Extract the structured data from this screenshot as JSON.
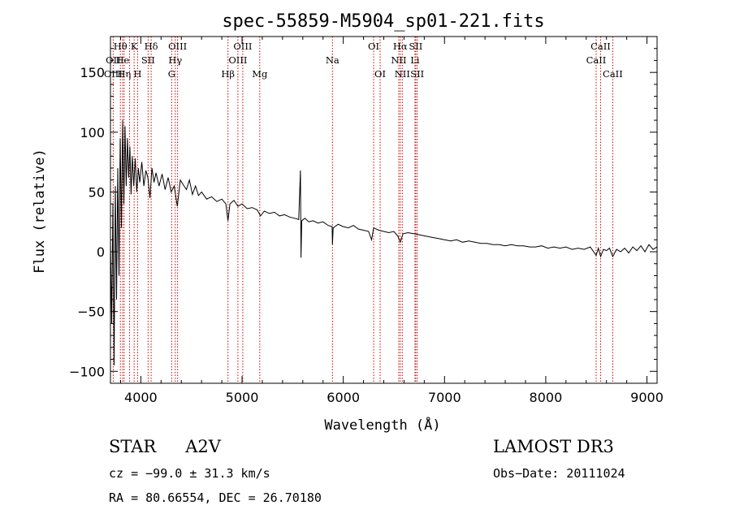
{
  "chart_data": {
    "type": "line",
    "title": "spec-55859-M5904_sp01-221.fits",
    "xlabel": "Wavelength (Å)",
    "ylabel": "Flux (relative)",
    "xlim": [
      3700,
      9100
    ],
    "ylim": [
      -110,
      180
    ],
    "x_ticks": [
      {
        "value": 4000,
        "label": "4000"
      },
      {
        "value": 5000,
        "label": "5000"
      },
      {
        "value": 6000,
        "label": "6000"
      },
      {
        "value": 7000,
        "label": "7000"
      },
      {
        "value": 8000,
        "label": "8000"
      },
      {
        "value": 9000,
        "label": "9000"
      }
    ],
    "y_ticks": [
      {
        "value": -100,
        "label": "−100"
      },
      {
        "value": -50,
        "label": "−50"
      },
      {
        "value": 0,
        "label": "0"
      },
      {
        "value": 50,
        "label": "50"
      },
      {
        "value": 100,
        "label": "100"
      },
      {
        "value": 150,
        "label": "150"
      }
    ],
    "series": [
      {
        "name": "flux",
        "points": [
          [
            3700,
            10
          ],
          [
            3712,
            -60
          ],
          [
            3724,
            40
          ],
          [
            3736,
            -95
          ],
          [
            3748,
            55
          ],
          [
            3760,
            -40
          ],
          [
            3772,
            70
          ],
          [
            3784,
            -20
          ],
          [
            3796,
            95
          ],
          [
            3808,
            20
          ],
          [
            3820,
            110
          ],
          [
            3832,
            40
          ],
          [
            3844,
            105
          ],
          [
            3856,
            55
          ],
          [
            3868,
            95
          ],
          [
            3880,
            62
          ],
          [
            3892,
            88
          ],
          [
            3904,
            48
          ],
          [
            3916,
            80
          ],
          [
            3930,
            55
          ],
          [
            3945,
            78
          ],
          [
            3960,
            50
          ],
          [
            3975,
            70
          ],
          [
            3990,
            58
          ],
          [
            4010,
            75
          ],
          [
            4030,
            55
          ],
          [
            4050,
            68
          ],
          [
            4070,
            62
          ],
          [
            4090,
            45
          ],
          [
            4110,
            70
          ],
          [
            4130,
            58
          ],
          [
            4150,
            66
          ],
          [
            4180,
            55
          ],
          [
            4210,
            65
          ],
          [
            4240,
            52
          ],
          [
            4270,
            62
          ],
          [
            4300,
            50
          ],
          [
            4330,
            55
          ],
          [
            4360,
            38
          ],
          [
            4390,
            60
          ],
          [
            4420,
            56
          ],
          [
            4450,
            52
          ],
          [
            4480,
            60
          ],
          [
            4510,
            48
          ],
          [
            4540,
            55
          ],
          [
            4570,
            47
          ],
          [
            4600,
            50
          ],
          [
            4650,
            44
          ],
          [
            4700,
            46
          ],
          [
            4750,
            42
          ],
          [
            4800,
            44
          ],
          [
            4840,
            40
          ],
          [
            4861,
            26
          ],
          [
            4880,
            40
          ],
          [
            4920,
            43
          ],
          [
            4960,
            38
          ],
          [
            5000,
            40
          ],
          [
            5050,
            36
          ],
          [
            5100,
            37
          ],
          [
            5150,
            35
          ],
          [
            5183,
            30
          ],
          [
            5220,
            34
          ],
          [
            5270,
            32
          ],
          [
            5320,
            33
          ],
          [
            5370,
            30
          ],
          [
            5420,
            31
          ],
          [
            5470,
            29
          ],
          [
            5520,
            28
          ],
          [
            5560,
            27
          ],
          [
            5577,
            68
          ],
          [
            5582,
            -5
          ],
          [
            5590,
            26
          ],
          [
            5620,
            28
          ],
          [
            5660,
            25
          ],
          [
            5700,
            26
          ],
          [
            5750,
            24
          ],
          [
            5800,
            25
          ],
          [
            5850,
            22
          ],
          [
            5890,
            21
          ],
          [
            5893,
            6
          ],
          [
            5900,
            20
          ],
          [
            5950,
            23
          ],
          [
            6000,
            21
          ],
          [
            6050,
            20
          ],
          [
            6100,
            22
          ],
          [
            6150,
            19
          ],
          [
            6200,
            18
          ],
          [
            6250,
            17
          ],
          [
            6280,
            10
          ],
          [
            6300,
            20
          ],
          [
            6350,
            18
          ],
          [
            6400,
            17
          ],
          [
            6450,
            16
          ],
          [
            6500,
            17
          ],
          [
            6540,
            13
          ],
          [
            6563,
            8
          ],
          [
            6590,
            15
          ],
          [
            6640,
            16
          ],
          [
            6700,
            15
          ],
          [
            6760,
            14
          ],
          [
            6820,
            13
          ],
          [
            6880,
            12
          ],
          [
            6940,
            11
          ],
          [
            7000,
            10
          ],
          [
            7060,
            9
          ],
          [
            7120,
            10
          ],
          [
            7180,
            8
          ],
          [
            7240,
            9
          ],
          [
            7300,
            8
          ],
          [
            7360,
            7
          ],
          [
            7420,
            7
          ],
          [
            7480,
            6
          ],
          [
            7540,
            6
          ],
          [
            7600,
            5
          ],
          [
            7660,
            6
          ],
          [
            7720,
            5
          ],
          [
            7780,
            5
          ],
          [
            7840,
            4
          ],
          [
            7900,
            4
          ],
          [
            7960,
            5
          ],
          [
            8020,
            3
          ],
          [
            8080,
            4
          ],
          [
            8140,
            3
          ],
          [
            8200,
            4
          ],
          [
            8260,
            2
          ],
          [
            8320,
            3
          ],
          [
            8380,
            2
          ],
          [
            8440,
            4
          ],
          [
            8498,
            -3
          ],
          [
            8520,
            3
          ],
          [
            8542,
            -4
          ],
          [
            8570,
            2
          ],
          [
            8600,
            1
          ],
          [
            8630,
            3
          ],
          [
            8662,
            -4
          ],
          [
            8700,
            2
          ],
          [
            8740,
            0
          ],
          [
            8780,
            3
          ],
          [
            8820,
            -1
          ],
          [
            8860,
            4
          ],
          [
            8900,
            1
          ],
          [
            8940,
            5
          ],
          [
            8980,
            0
          ],
          [
            9020,
            6
          ],
          [
            9060,
            2
          ],
          [
            9100,
            4
          ]
        ]
      }
    ],
    "annotations": [
      {
        "label": "Hθ",
        "wavelength": 3798,
        "row": 1
      },
      {
        "label": "K",
        "wavelength": 3934,
        "row": 1
      },
      {
        "label": "Hδ",
        "wavelength": 4102,
        "row": 1
      },
      {
        "label": "OIII",
        "wavelength": 4363,
        "row": 1
      },
      {
        "label": "OIII",
        "wavelength": 5007,
        "row": 1
      },
      {
        "label": "OI",
        "wavelength": 6300,
        "row": 1
      },
      {
        "label": "Hα",
        "wavelength": 6563,
        "row": 1
      },
      {
        "label": "SII",
        "wavelength": 6716,
        "row": 1
      },
      {
        "label": "CaII",
        "wavelength": 8542,
        "row": 1
      },
      {
        "label": "OII",
        "wavelength": 3727,
        "row": 2
      },
      {
        "label": "He",
        "wavelength": 3820,
        "row": 2
      },
      {
        "label": "SII",
        "wavelength": 4072,
        "row": 2
      },
      {
        "label": "Hγ",
        "wavelength": 4340,
        "row": 2
      },
      {
        "label": "OIII",
        "wavelength": 4959,
        "row": 2
      },
      {
        "label": "Na",
        "wavelength": 5893,
        "row": 2
      },
      {
        "label": "NII",
        "wavelength": 6548,
        "row": 2
      },
      {
        "label": "Li",
        "wavelength": 6708,
        "row": 2
      },
      {
        "label": "CaII",
        "wavelength": 8498,
        "row": 2
      },
      {
        "label": "OIII",
        "wavelength": 3727,
        "row": 3
      },
      {
        "label": "Hη",
        "wavelength": 3835,
        "row": 3
      },
      {
        "label": "H",
        "wavelength": 3968,
        "row": 3
      },
      {
        "label": "G",
        "wavelength": 4305,
        "row": 3
      },
      {
        "label": "Hβ",
        "wavelength": 4861,
        "row": 3
      },
      {
        "label": "Mg",
        "wavelength": 5175,
        "row": 3
      },
      {
        "label": "OI",
        "wavelength": 6364,
        "row": 3
      },
      {
        "label": "NII",
        "wavelength": 6583,
        "row": 3
      },
      {
        "label": "SII",
        "wavelength": 6731,
        "row": 3
      },
      {
        "label": "CaII",
        "wavelength": 8662,
        "row": 3
      }
    ],
    "line_markers": [
      3727,
      3798,
      3820,
      3835,
      3889,
      3934,
      3968,
      4072,
      4102,
      4305,
      4340,
      4363,
      4861,
      4959,
      5007,
      5175,
      5893,
      6300,
      6364,
      6548,
      6563,
      6583,
      6708,
      6716,
      6731,
      8498,
      8542,
      8662
    ],
    "colors": {
      "axes": "#000000",
      "markers": "#cc0000",
      "series": "#000000"
    }
  },
  "info": {
    "class_label": "STAR",
    "subclass": "A2V",
    "survey": "LAMOST DR3",
    "redshift": "cz = −99.0 ± 31.3 km/s",
    "obs_date": "Obs−Date: 20111024",
    "coords": "RA =  80.66554, DEC =  26.70180"
  }
}
